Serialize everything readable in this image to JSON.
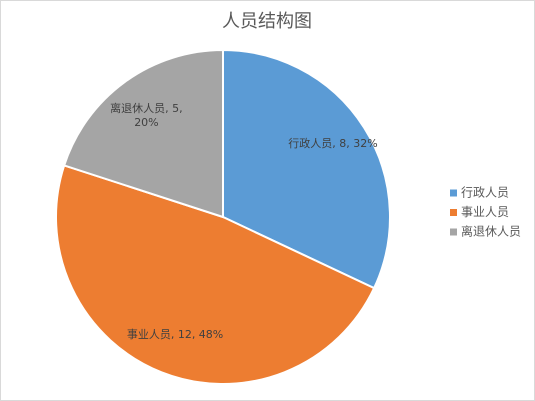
{
  "chart_data": {
    "type": "pie",
    "title": "人员结构图",
    "categories": [
      "行政人员",
      "事业人员",
      "离退休人员"
    ],
    "values": [
      8,
      12,
      5
    ],
    "value_labels": [
      "行政人员, 8, 32%",
      "事业人员, 12, 48%",
      "离退休人员, 5, 20%"
    ],
    "colors": [
      "#5b9bd5",
      "#ed7d31",
      "#a5a5a5"
    ],
    "legend": "right"
  }
}
